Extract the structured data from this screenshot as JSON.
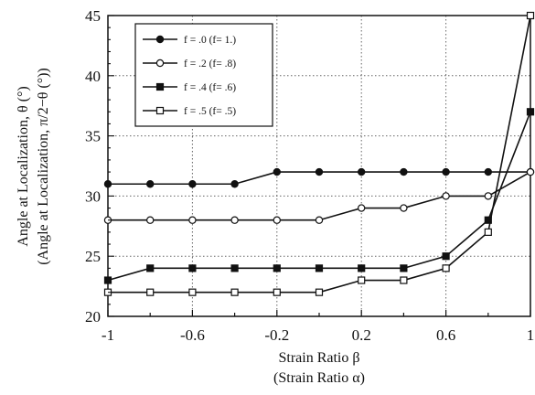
{
  "chart_data": {
    "type": "line",
    "xlabel": "Strain Ratio β",
    "xlabel2": "(Strain Ratio α)",
    "ylabel": "Angle at Localization, θ (°)",
    "ylabel2": "(Angle at Localization, π/2−θ (°))",
    "xlim": [
      -1,
      1
    ],
    "ylim": [
      20,
      45
    ],
    "grid": true,
    "legend_position": "top-left",
    "xticks": [
      -1,
      -0.6,
      -0.2,
      0.2,
      0.6,
      1
    ],
    "xtick_labels": [
      "-1",
      "-0.6",
      "-0.2",
      "0.2",
      "0.6",
      "1"
    ],
    "yticks": [
      20,
      25,
      30,
      35,
      40,
      45
    ],
    "ytick_labels": [
      "20",
      "25",
      "30",
      "35",
      "40",
      "45"
    ],
    "x": [
      -1,
      -0.8,
      -0.6,
      -0.4,
      -0.2,
      0,
      0.2,
      0.4,
      0.6,
      0.8,
      1
    ],
    "series": [
      {
        "name": "f = .0 (f= 1.)",
        "marker": "circle-filled",
        "values": [
          31,
          31,
          31,
          31,
          32,
          32,
          32,
          32,
          32,
          32,
          32
        ]
      },
      {
        "name": "f = .2 (f= .8)",
        "marker": "circle-open",
        "values": [
          28,
          28,
          28,
          28,
          28,
          28,
          29,
          29,
          30,
          30,
          32
        ]
      },
      {
        "name": "f = .4 (f= .6)",
        "marker": "square-filled",
        "values": [
          23,
          24,
          24,
          24,
          24,
          24,
          24,
          24,
          25,
          28,
          37
        ]
      },
      {
        "name": "f = .5 (f= .5)",
        "marker": "square-open",
        "values": [
          22,
          22,
          22,
          22,
          22,
          22,
          23,
          23,
          24,
          27,
          45
        ]
      }
    ]
  }
}
